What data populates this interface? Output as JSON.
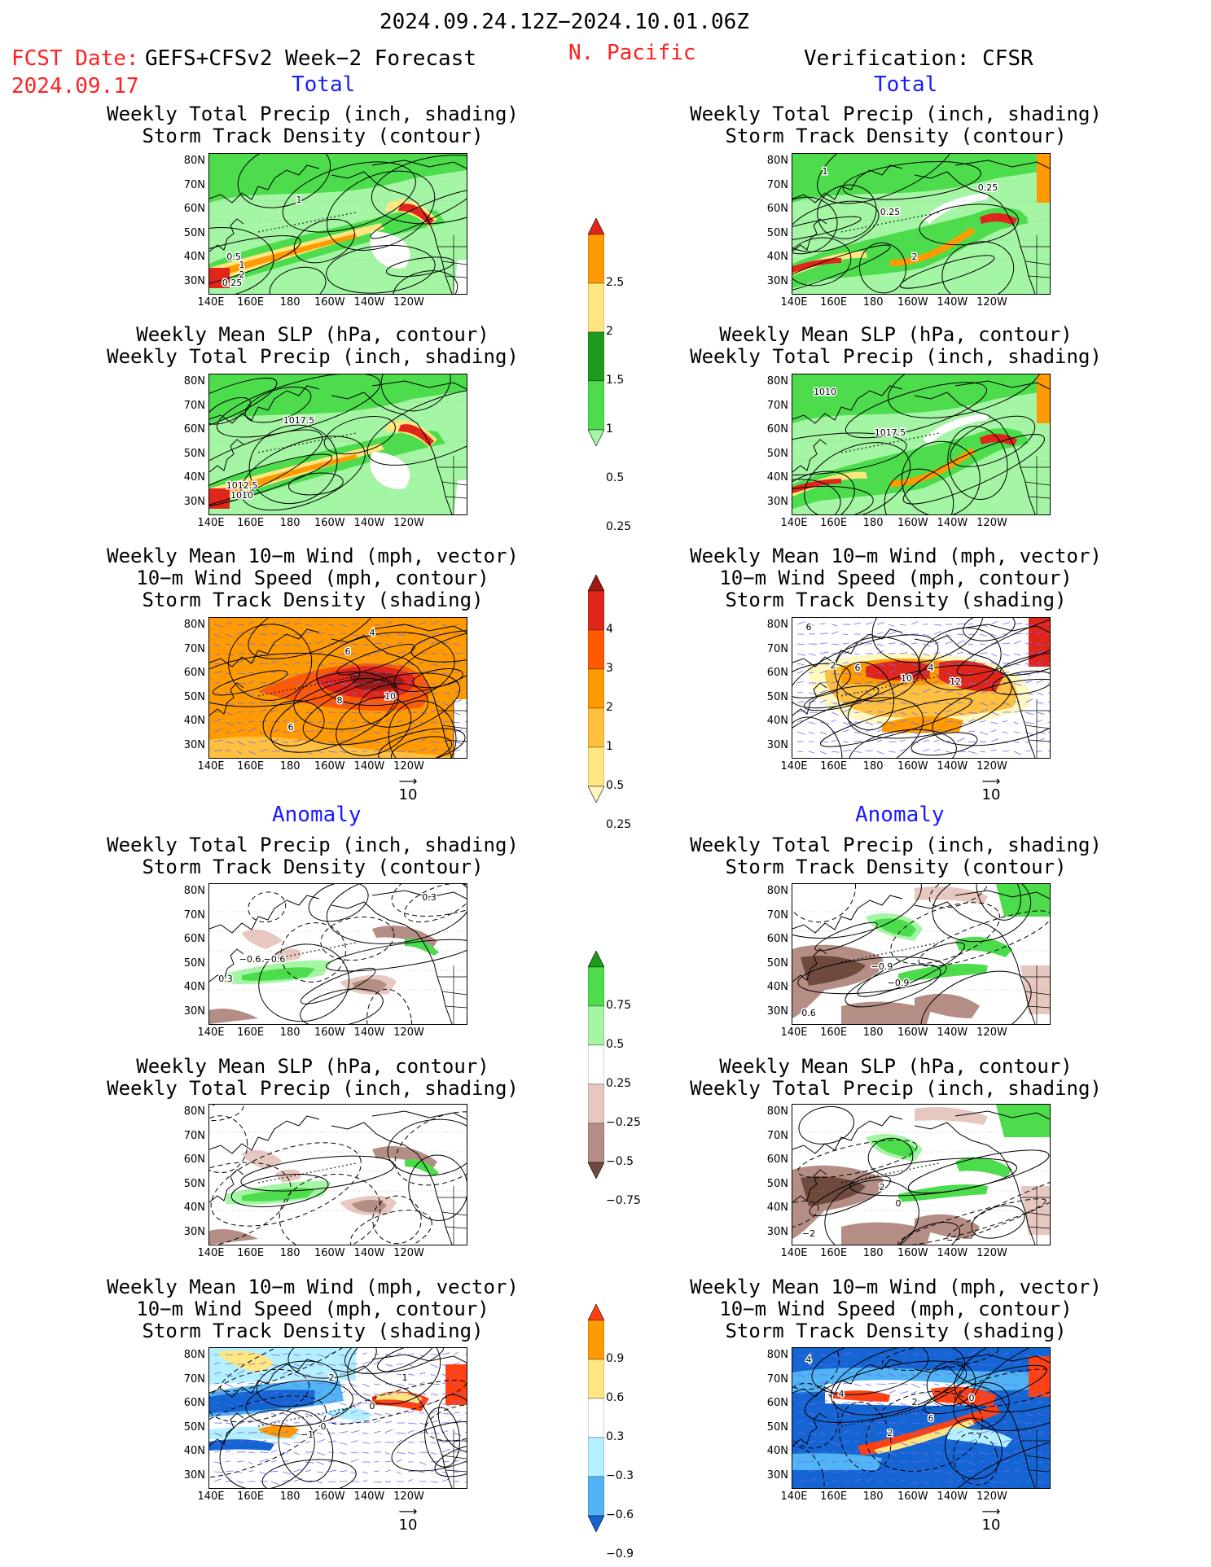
{
  "header": {
    "date_range": "2024.09.24.12Z−2024.10.01.06Z",
    "fcst_label": "FCST Date:",
    "fcst_model": "GEFS+CFSv2 Week−2 Forecast",
    "fcst_date": "2024.09.17",
    "region": "N. Pacific",
    "verification": "Verification: CFSR"
  },
  "sections": {
    "total_left": "Total",
    "total_right": "Total",
    "anomaly_left": "Anomaly",
    "anomaly_right": "Anomaly"
  },
  "titles": {
    "precip_storm": "Weekly Total Precip (inch, shading)\nStorm Track Density (contour)",
    "slp_precip": "Weekly Mean SLP (hPa, contour)\nWeekly Total Precip (inch, shading)",
    "wind_storm": "Weekly Mean 10−m Wind (mph, vector)\n10−m Wind Speed (mph, contour)\nStorm Track Density (shading)"
  },
  "axes": {
    "lat_labels": [
      "80N",
      "70N",
      "60N",
      "50N",
      "40N",
      "30N"
    ],
    "lon_labels": [
      "140E",
      "160E",
      "180",
      "160W",
      "140W",
      "120W"
    ]
  },
  "vector_reference": "10",
  "colorbars": {
    "precip_total": {
      "labels": [
        "2.5",
        "2",
        "1.5",
        "1",
        "0.5",
        "0.25"
      ],
      "colors": [
        "#e0251a",
        "#ff9b00",
        "#ffe680",
        "#1e9a1e",
        "#4cdc4c",
        "#a4f5a4"
      ]
    },
    "storm_total": {
      "labels": [
        "4",
        "3",
        "2",
        "1",
        "0.5",
        "0.25"
      ],
      "colors": [
        "#9b1b14",
        "#e0251a",
        "#ff5a00",
        "#ff9b00",
        "#ffc040",
        "#ffe680",
        "#fff8c0"
      ]
    },
    "precip_anom": {
      "labels": [
        "0.75",
        "0.5",
        "0.25",
        "−0.25",
        "−0.5",
        "−0.75"
      ],
      "colors": [
        "#1e9a1e",
        "#4cdc4c",
        "#a4f5a4",
        "#ffffff",
        "#e6c8c0",
        "#b48e84",
        "#6e4a3e"
      ]
    },
    "storm_anom": {
      "labels": [
        "0.9",
        "0.6",
        "0.3",
        "−0.3",
        "−0.6",
        "−0.9"
      ],
      "colors": [
        "#ff4010",
        "#ff9b00",
        "#ffe680",
        "#ffffff",
        "#b4f0ff",
        "#50b4f5",
        "#1464d2"
      ]
    }
  },
  "panels": [
    {
      "id": "L1",
      "style": "precip",
      "contour_labels": [
        "1",
        "2",
        "1",
        "0.5",
        "0.25"
      ]
    },
    {
      "id": "R1",
      "style": "precip_obs",
      "contour_labels": [
        "1",
        "0.25",
        "2",
        "0.25"
      ]
    },
    {
      "id": "L2",
      "style": "precip",
      "contour_labels": [
        "1012.5",
        "1010",
        "1017.5"
      ]
    },
    {
      "id": "R2",
      "style": "precip_obs",
      "contour_labels": [
        "1010",
        "1017.5"
      ]
    },
    {
      "id": "L3",
      "style": "storm",
      "contour_labels": [
        "4",
        "6",
        "8",
        "10",
        "6"
      ]
    },
    {
      "id": "R3",
      "style": "storm_obs",
      "contour_labels": [
        "6",
        "2",
        "6",
        "10",
        "4",
        "12"
      ]
    },
    {
      "id": "L4",
      "style": "precip_anom",
      "contour_labels": [
        "0.3",
        "−0.6",
        "−0.6",
        "0.3"
      ]
    },
    {
      "id": "R4",
      "style": "precip_anom_obs",
      "contour_labels": [
        "−0.9",
        "−0.9",
        "0.6"
      ]
    },
    {
      "id": "L5",
      "style": "precip_anom",
      "contour_labels": []
    },
    {
      "id": "R5",
      "style": "precip_anom_obs",
      "contour_labels": [
        "2",
        "0",
        "−2"
      ]
    },
    {
      "id": "L6",
      "style": "storm_anom",
      "contour_labels": [
        "1",
        "2",
        "0",
        "0",
        "−1"
      ]
    },
    {
      "id": "R6",
      "style": "storm_anom_obs",
      "contour_labels": [
        "4",
        "4",
        "2",
        "0",
        "6",
        "2"
      ]
    }
  ]
}
